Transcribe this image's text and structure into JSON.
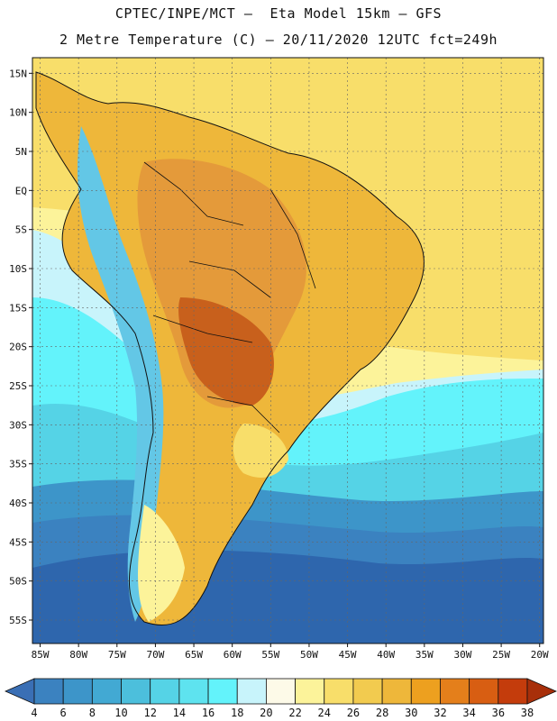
{
  "header": {
    "line1": "CPTEC/INPE/MCT –  Eta Model 15km – GFS",
    "line2": "2 Metre Temperature (C) – 20/11/2020 12UTC fct=249h"
  },
  "axes": {
    "lat_labels": [
      "15N",
      "10N",
      "5N",
      "EQ",
      "5S",
      "10S",
      "15S",
      "20S",
      "25S",
      "30S",
      "35S",
      "40S",
      "45S",
      "50S",
      "55S"
    ],
    "lat_values": [
      15,
      10,
      5,
      0,
      -5,
      -10,
      -15,
      -20,
      -25,
      -30,
      -35,
      -40,
      -45,
      -50,
      -55
    ],
    "lon_labels": [
      "85W",
      "80W",
      "75W",
      "70W",
      "65W",
      "60W",
      "55W",
      "50W",
      "45W",
      "40W",
      "35W",
      "30W",
      "25W",
      "20W"
    ],
    "lon_values": [
      -85,
      -80,
      -75,
      -70,
      -65,
      -60,
      -55,
      -50,
      -45,
      -40,
      -35,
      -30,
      -25,
      -20
    ],
    "lat_range": [
      -58,
      17
    ],
    "lon_range": [
      -86,
      -19.5
    ]
  },
  "colorbar": {
    "units": "C",
    "labels": [
      "4",
      "6",
      "8",
      "10",
      "12",
      "14",
      "16",
      "18",
      "20",
      "22",
      "24",
      "26",
      "28",
      "30",
      "32",
      "34",
      "36",
      "38"
    ],
    "colors": [
      "#3a6fb5",
      "#3b82c0",
      "#3d95c9",
      "#42a9d3",
      "#4cbfdc",
      "#55d3e6",
      "#5ee3ef",
      "#63f3fb",
      "#c8f4fb",
      "#fdfae8",
      "#fcf39a",
      "#f8de6a",
      "#f2cb4f",
      "#eeb73a",
      "#eda01f",
      "#e47f1b",
      "#d85e12",
      "#c43c0c",
      "#a82f0a"
    ]
  },
  "colors": {
    "ocean_cold": "#2e66ad",
    "ocean_cool": "#3b8fc8",
    "ocean_mild": "#5dd3ea",
    "ocean_warm": "#fbe27a",
    "land_hot": "#e49a3a",
    "land_very_hot": "#c8601c",
    "andes": "#63c7e6"
  }
}
